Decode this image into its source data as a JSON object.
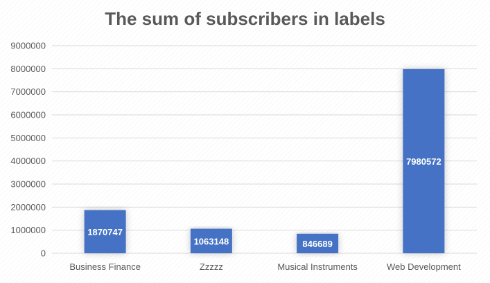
{
  "chart_data": {
    "type": "bar",
    "title": "The sum of subscribers in labels",
    "xlabel": "",
    "ylabel": "",
    "categories": [
      "Business Finance",
      "Zzzzz",
      "Musical Instruments",
      "Web Development"
    ],
    "values": [
      1870747,
      1063148,
      846689,
      7980572
    ],
    "data_labels": [
      "1870747",
      "1063148",
      "846689",
      "7980572"
    ],
    "ylim": [
      0,
      9000000
    ],
    "yticks": [
      0,
      1000000,
      2000000,
      3000000,
      4000000,
      5000000,
      6000000,
      7000000,
      8000000,
      9000000
    ],
    "ytick_labels": [
      "0",
      "1000000",
      "2000000",
      "3000000",
      "4000000",
      "5000000",
      "6000000",
      "7000000",
      "8000000",
      "9000000"
    ],
    "grid": true,
    "legend": "none",
    "bar_color": "#4472C4",
    "grid_color": "#d9d9d9",
    "text_color": "#595959"
  }
}
